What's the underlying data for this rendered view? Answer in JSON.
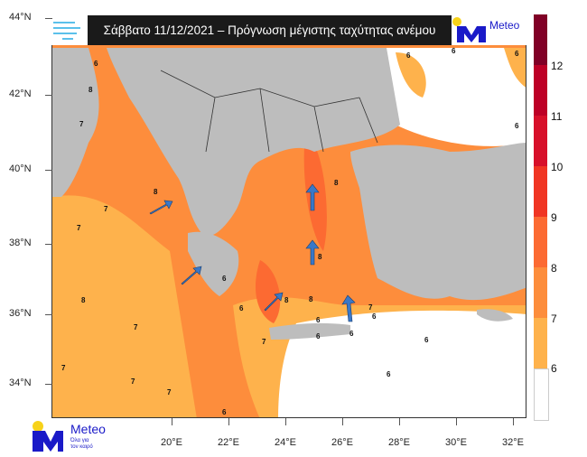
{
  "title": "Σάββατο 11/12/2021 – Πρόγνωση μέγιστης ταχύτητας ανέμου",
  "logo": {
    "brand": "Meteo",
    "tagline_1": "Όλα για",
    "tagline_2": "τον καιρό"
  },
  "latitudes": [
    "44°N",
    "42°N",
    "40°N",
    "38°N",
    "36°N",
    "34°N"
  ],
  "longitudes": [
    "20°E",
    "22°E",
    "24°E",
    "26°E",
    "28°E",
    "30°E",
    "32°E"
  ],
  "colorbar": {
    "labels": [
      "12",
      "11",
      "10",
      "9",
      "8",
      "7",
      "6"
    ],
    "colors": [
      "#800026",
      "#bd0026",
      "#d7102a",
      "#f03523",
      "#fc6a32",
      "#fd8d3c",
      "#feb24c",
      "#ffffff"
    ]
  },
  "colors": {
    "land": "#bdbdbd",
    "arrow": "#3a78c8",
    "title_bg": "#1a1a1a"
  },
  "contour_labels": [
    "6",
    "6",
    "6",
    "6",
    "7",
    "8",
    "8",
    "7",
    "7",
    "8",
    "8",
    "8",
    "7",
    "7",
    "8",
    "7",
    "7",
    "7",
    "6",
    "7",
    "6",
    "6",
    "6",
    "8",
    "6",
    "6",
    "6",
    "6",
    "6",
    "6"
  ],
  "wind_arrows": [
    "north-east",
    "north-east",
    "north-east",
    "north",
    "north",
    "north"
  ]
}
